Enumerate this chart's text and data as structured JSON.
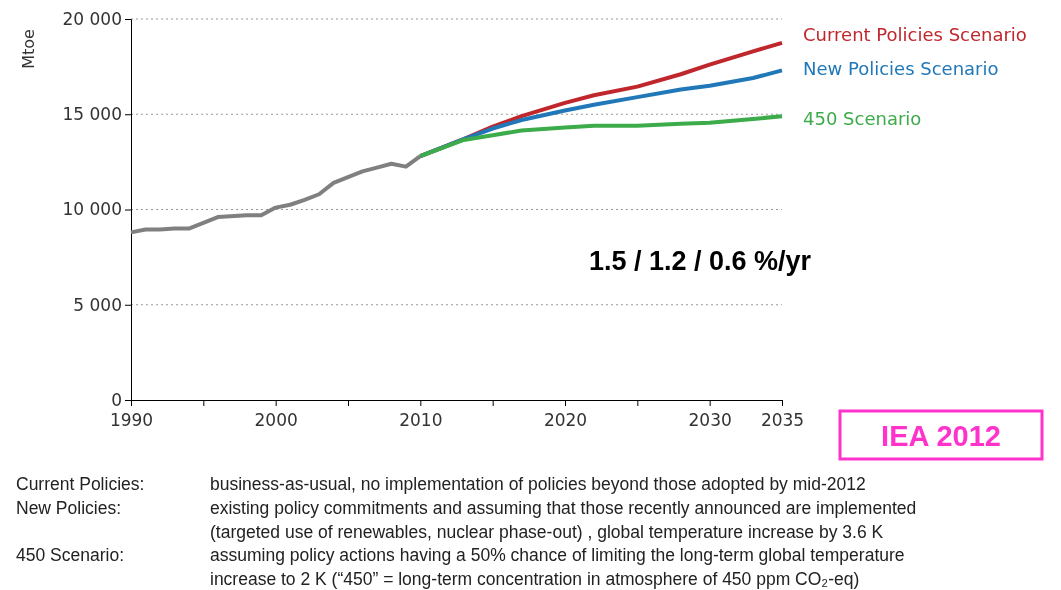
{
  "chart_data": {
    "type": "line",
    "ylabel": "Mtoe",
    "xlim": [
      1990,
      2035
    ],
    "xticks": [
      1990,
      {
        "value": 1995,
        "label": null
      },
      2000,
      {
        "value": 2005,
        "label": null
      },
      2010,
      {
        "value": 2015,
        "label": null
      },
      2020,
      {
        "value": 2025,
        "label": null
      },
      2030,
      2035
    ],
    "ylim": [
      0,
      20000
    ],
    "yticks": [
      {
        "value": 0,
        "label": "0"
      },
      {
        "value": 5000,
        "label": "5 000"
      },
      {
        "value": 10000,
        "label": "10 000"
      },
      {
        "value": 15000,
        "label": "15 000"
      },
      {
        "value": 20000,
        "label": "20 000"
      }
    ],
    "grid": "y",
    "line_style": "solid",
    "marker": "none",
    "series": [
      {
        "color": "#808080",
        "x": [
          1990,
          1991,
          1992,
          1993,
          1994,
          1995,
          1996,
          1998,
          1999,
          2000,
          2001,
          2002,
          2003,
          2004,
          2005,
          2006,
          2007,
          2008,
          2009,
          2010
        ],
        "values": [
          8800,
          8950,
          8950,
          9000,
          9000,
          9300,
          9600,
          9700,
          9700,
          10100,
          10250,
          10500,
          10800,
          11400,
          11700,
          12000,
          12200,
          12400,
          12250,
          12800
        ]
      },
      {
        "name": "Current Policies Scenario",
        "color": "#c0272d",
        "x": [
          2010,
          2013,
          2015,
          2017,
          2020,
          2022,
          2025,
          2028,
          2030,
          2033,
          2035
        ],
        "values": [
          12800,
          13700,
          14350,
          14900,
          15600,
          16000,
          16450,
          17100,
          17600,
          18300,
          18750
        ]
      },
      {
        "name": "New Policies Scenario",
        "color": "#2178b8",
        "x": [
          2010,
          2013,
          2015,
          2017,
          2020,
          2022,
          2025,
          2028,
          2030,
          2033,
          2035
        ],
        "values": [
          12800,
          13700,
          14250,
          14700,
          15200,
          15500,
          15900,
          16300,
          16500,
          16900,
          17300
        ]
      },
      {
        "name": "450 Scenario",
        "color": "#3cab4a",
        "x": [
          2010,
          2013,
          2015,
          2017,
          2020,
          2022,
          2025,
          2028,
          2030,
          2033,
          2035
        ],
        "values": [
          12800,
          13650,
          13900,
          14150,
          14300,
          14400,
          14400,
          14500,
          14550,
          14750,
          14900
        ]
      }
    ],
    "annotations": [
      "1.5 / 1.2 / 0.6 %/yr",
      "IEA 2012",
      "Current Policies:",
      "business-as-usual, no implementation of policies beyond those adopted by mid-2012",
      "New Policies:",
      "existing policy commitments and assuming that those recently announced are implemented",
      "(targeted use of renewables, nuclear phase-out) , global temperature increase by 3.6 K",
      "450 Scenario:",
      "assuming policy actions having a 50% chance of limiting the long-term global temperature",
      "increase to 2 K (“450” = long-term concentration in atmosphere of 450 ppm CO₂-eq)"
    ]
  }
}
